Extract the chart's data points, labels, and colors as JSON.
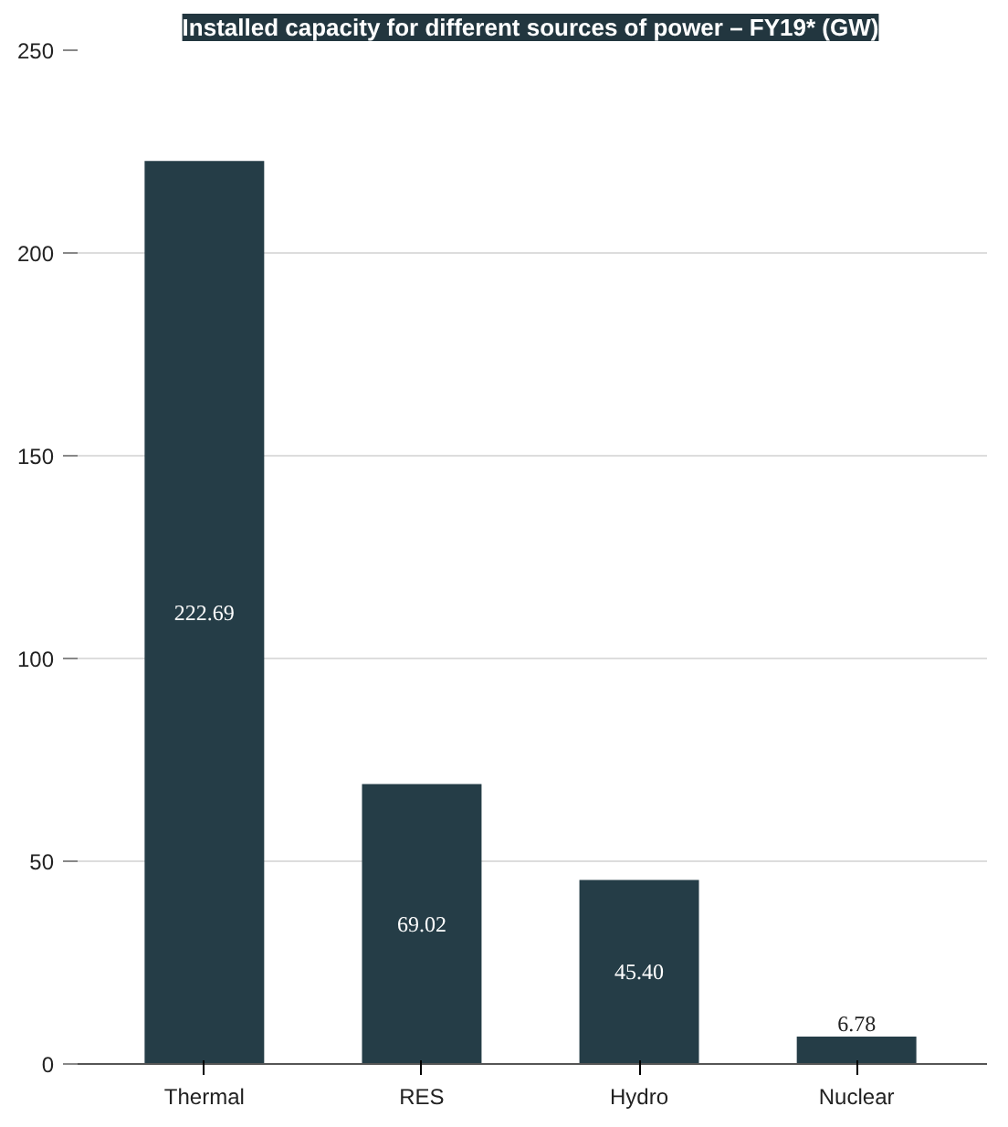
{
  "chart_data": {
    "type": "bar",
    "title": "Installed capacity for different sources of power – FY19* (GW)",
    "categories": [
      "Thermal",
      "RES",
      "Hydro",
      "Nuclear"
    ],
    "values": [
      222.69,
      69.02,
      45.4,
      6.78
    ],
    "value_labels": [
      "222.69",
      "69.02",
      "45.40",
      "6.78"
    ],
    "color": "#253d47",
    "ylim": [
      0,
      250
    ],
    "yticks": [
      0,
      50,
      100,
      150,
      200,
      250
    ],
    "grid": "y"
  }
}
